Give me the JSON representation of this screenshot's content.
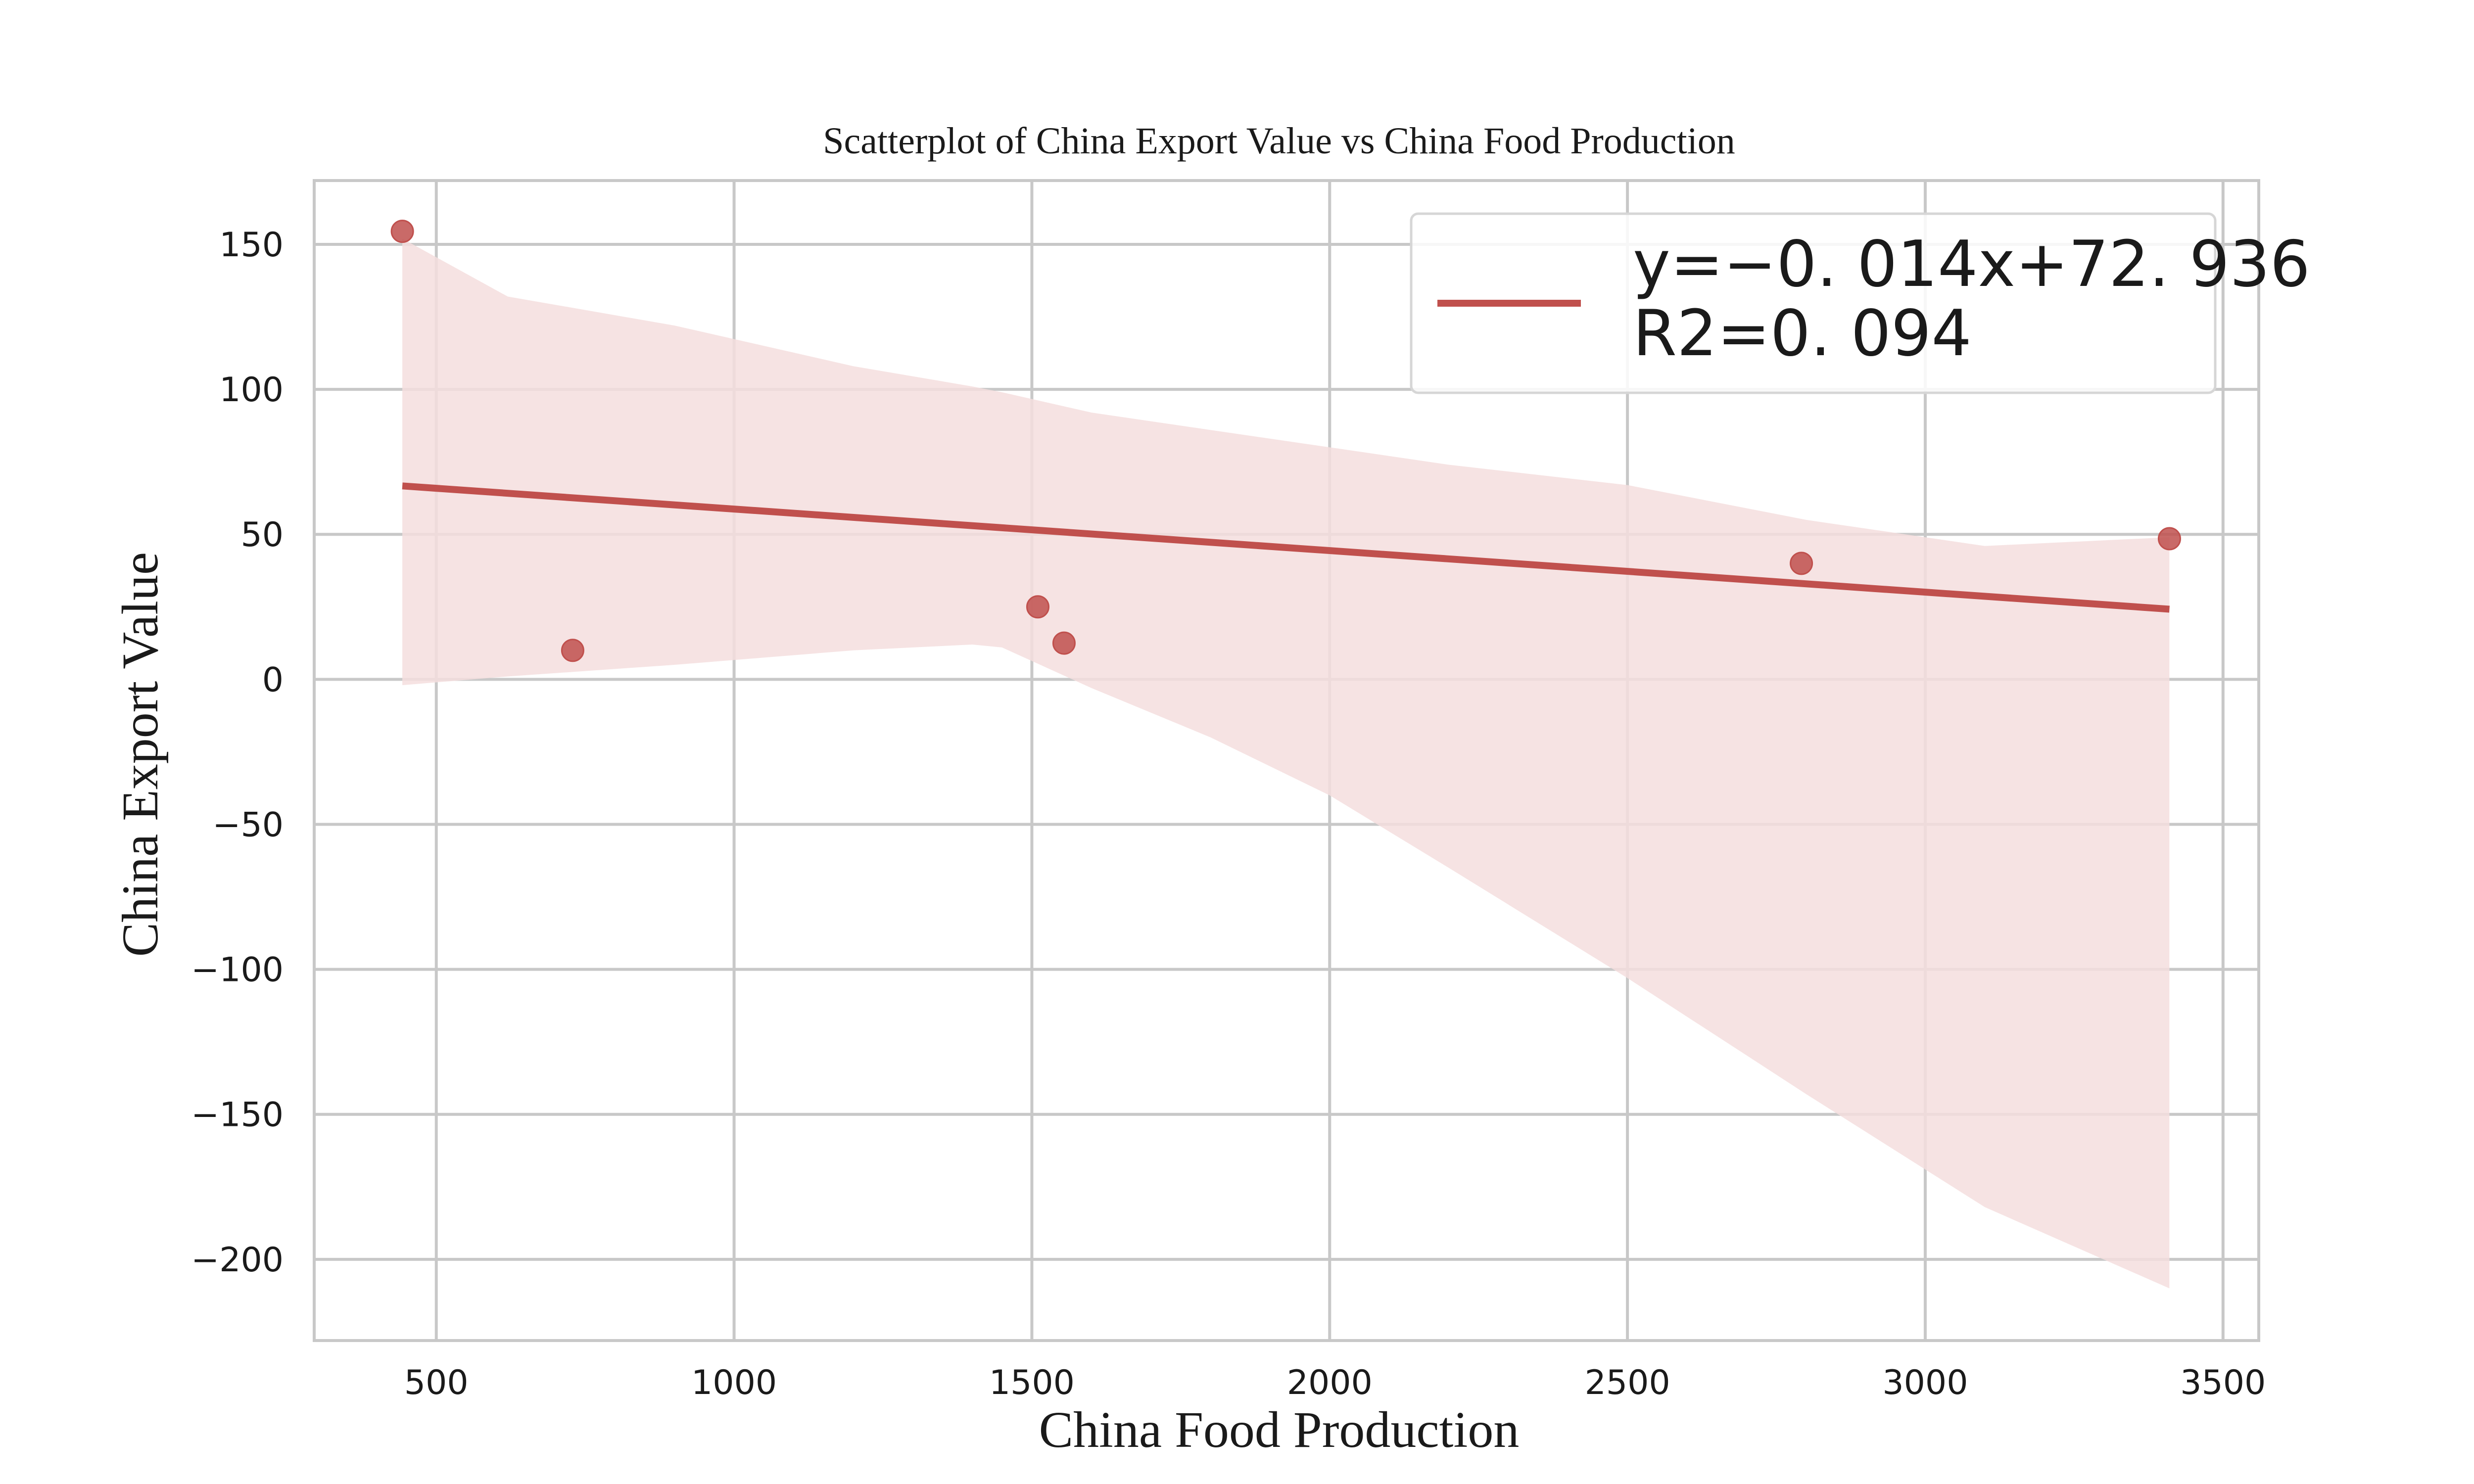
{
  "chart_data": {
    "type": "scatter",
    "title": "Scatterplot of China Export Value vs China Food Production",
    "xlabel": "China Food Production",
    "ylabel": "China Export Value",
    "xlim": [
      295,
      3560
    ],
    "ylim": [
      -228,
      172
    ],
    "xticks": [
      500,
      1000,
      1500,
      2000,
      2500,
      3000,
      3500
    ],
    "yticks": [
      -200,
      -150,
      -100,
      -50,
      0,
      50,
      100,
      150
    ],
    "grid": true,
    "legend_position": "top-right",
    "legend_lines": [
      "y=−0. 014x+72. 936",
      "R2=0. 094"
    ],
    "series": [
      {
        "x": [
          443,
          729,
          1510,
          1554,
          2792,
          3410
        ],
        "y": [
          154.5,
          10,
          25,
          12.5,
          40,
          48.5
        ]
      }
    ],
    "regression": {
      "x": [
        443,
        3410
      ],
      "y": [
        66.7,
        24.2
      ]
    },
    "confidence_band": {
      "x": [
        443,
        620,
        900,
        1200,
        1400,
        1450,
        1600,
        1800,
        2000,
        2200,
        2500,
        2800,
        3100,
        3410
      ],
      "upper": [
        152,
        132,
        122,
        108,
        101,
        99,
        92,
        86,
        80,
        74,
        67,
        55,
        46,
        49
      ],
      "lower": [
        -2,
        1,
        5,
        10,
        12,
        11,
        -3,
        -20,
        -40,
        -65,
        -103,
        -143,
        -182,
        -210
      ]
    },
    "colors": {
      "marker": "#c0504d",
      "line": "#c0504d",
      "band": "#f4dede",
      "grid": "#c8c8c8",
      "axis": "#c8c8c8",
      "text": "#1a1a1a"
    }
  }
}
